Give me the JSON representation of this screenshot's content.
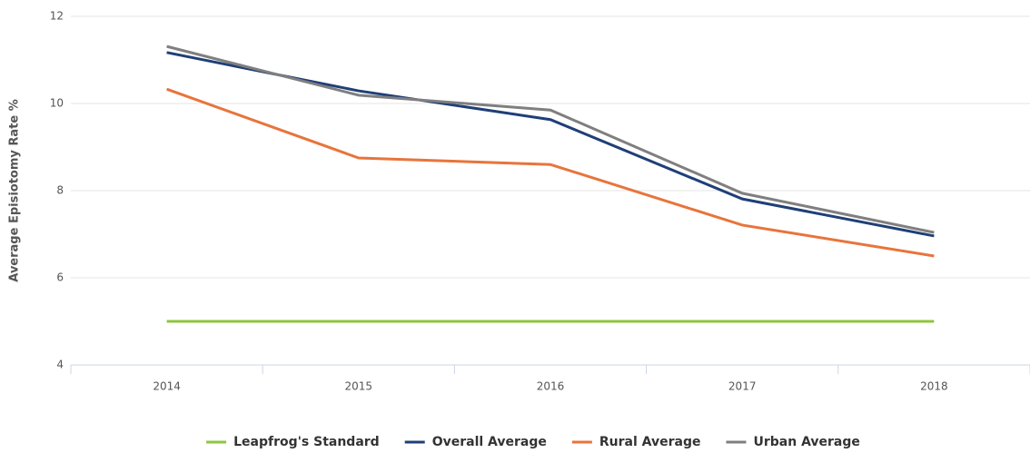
{
  "chart_data": {
    "type": "line",
    "y_label": "Average Episiotomy Rate %",
    "categories": [
      "2014",
      "2015",
      "2016",
      "2017",
      "2018"
    ],
    "series": [
      {
        "name": "Leapfrog's Standard",
        "color": "#8dc63f",
        "values": [
          5,
          5,
          5,
          5,
          5
        ]
      },
      {
        "name": "Overall Average",
        "color": "#1f3f77",
        "values": [
          11.17,
          10.29,
          9.63,
          7.81,
          6.96
        ]
      },
      {
        "name": "Rural Average",
        "color": "#e8743b",
        "values": [
          10.33,
          8.75,
          8.6,
          7.21,
          6.5
        ]
      },
      {
        "name": "Urban Average",
        "color": "#7f7f7f",
        "values": [
          11.31,
          10.19,
          9.85,
          7.94,
          7.04
        ]
      }
    ],
    "ylim": [
      4,
      12
    ],
    "yticks": [
      4,
      6,
      8,
      10,
      12
    ],
    "grid": true,
    "legend": "bottom"
  }
}
